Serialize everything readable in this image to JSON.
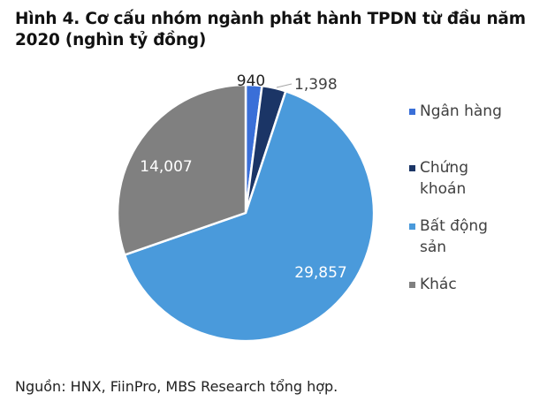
{
  "title": "Hình 4. Cơ cấu nhóm ngành phát hành TPDN từ đầu năm 2020 (nghìn tỷ đồng)",
  "source": "Nguồn: HNX, FiinPro, MBS Research tổng hợp.",
  "legend": {
    "items": [
      {
        "label_line1": "Ngân hàng",
        "label_line2": "",
        "color": "#3A6FD8"
      },
      {
        "label_line1": "Chứng",
        "label_line2": "khoán",
        "color": "#1B3566"
      },
      {
        "label_line1": "Bất động",
        "label_line2": "sản",
        "color": "#4A9ADB"
      },
      {
        "label_line1": "Khác",
        "label_line2": "",
        "color": "#808080"
      }
    ]
  },
  "labels": {
    "ngan_hang": "940",
    "chung_khoan": "1,398",
    "bat_dong_san": "29,857",
    "khac": "14,007"
  },
  "chart_data": {
    "type": "pie",
    "title": "Hình 4. Cơ cấu nhóm ngành phát hành TPDN từ đầu năm 2020 (nghìn tỷ đồng)",
    "categories": [
      "Ngân hàng",
      "Chứng khoán",
      "Bất động sản",
      "Khác"
    ],
    "values": [
      940,
      1398,
      29857,
      14007
    ],
    "colors": [
      "#3A6FD8",
      "#1B3566",
      "#4A9ADB",
      "#808080"
    ],
    "data_labels": [
      "940",
      "1,398",
      "29,857",
      "14,007"
    ],
    "start_angle": "12 o'clock, clockwise",
    "legend_position": "right",
    "unit": "nghìn tỷ đồng"
  }
}
